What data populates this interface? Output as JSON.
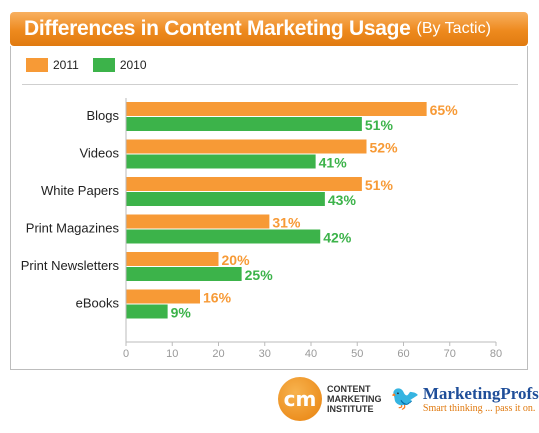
{
  "chart_data": {
    "type": "bar",
    "orientation": "horizontal",
    "title": "Differences in Content Marketing Usage",
    "subtitle": "(By Tactic)",
    "categories": [
      "Blogs",
      "Videos",
      "White Papers",
      "Print Magazines",
      "Print Newsletters",
      "eBooks"
    ],
    "series": [
      {
        "name": "2011",
        "values": [
          65,
          52,
          51,
          31,
          20,
          16
        ],
        "labels": [
          "65%",
          "52%",
          "51%",
          "31%",
          "20%",
          "16%"
        ],
        "color": "#f79a36"
      },
      {
        "name": "2010",
        "values": [
          51,
          41,
          43,
          42,
          25,
          9
        ],
        "labels": [
          "51%",
          "41%",
          "43%",
          "42%",
          "25%",
          "9%"
        ],
        "color": "#3cb34a"
      }
    ],
    "xlim": [
      0,
      80
    ],
    "xticks": [
      "0",
      "10",
      "20",
      "30",
      "40",
      "50",
      "60",
      "70",
      "80"
    ],
    "grid": false,
    "legend": "top-left"
  },
  "logos": {
    "cmi_mark": "cm",
    "cmi_lines": [
      "CONTENT",
      "MARKETING",
      "INSTITUTE"
    ],
    "mp_icon": "bird-icon",
    "mp_name": "MarketingProfs",
    "mp_tagline": "Smart thinking ... pass it on."
  }
}
